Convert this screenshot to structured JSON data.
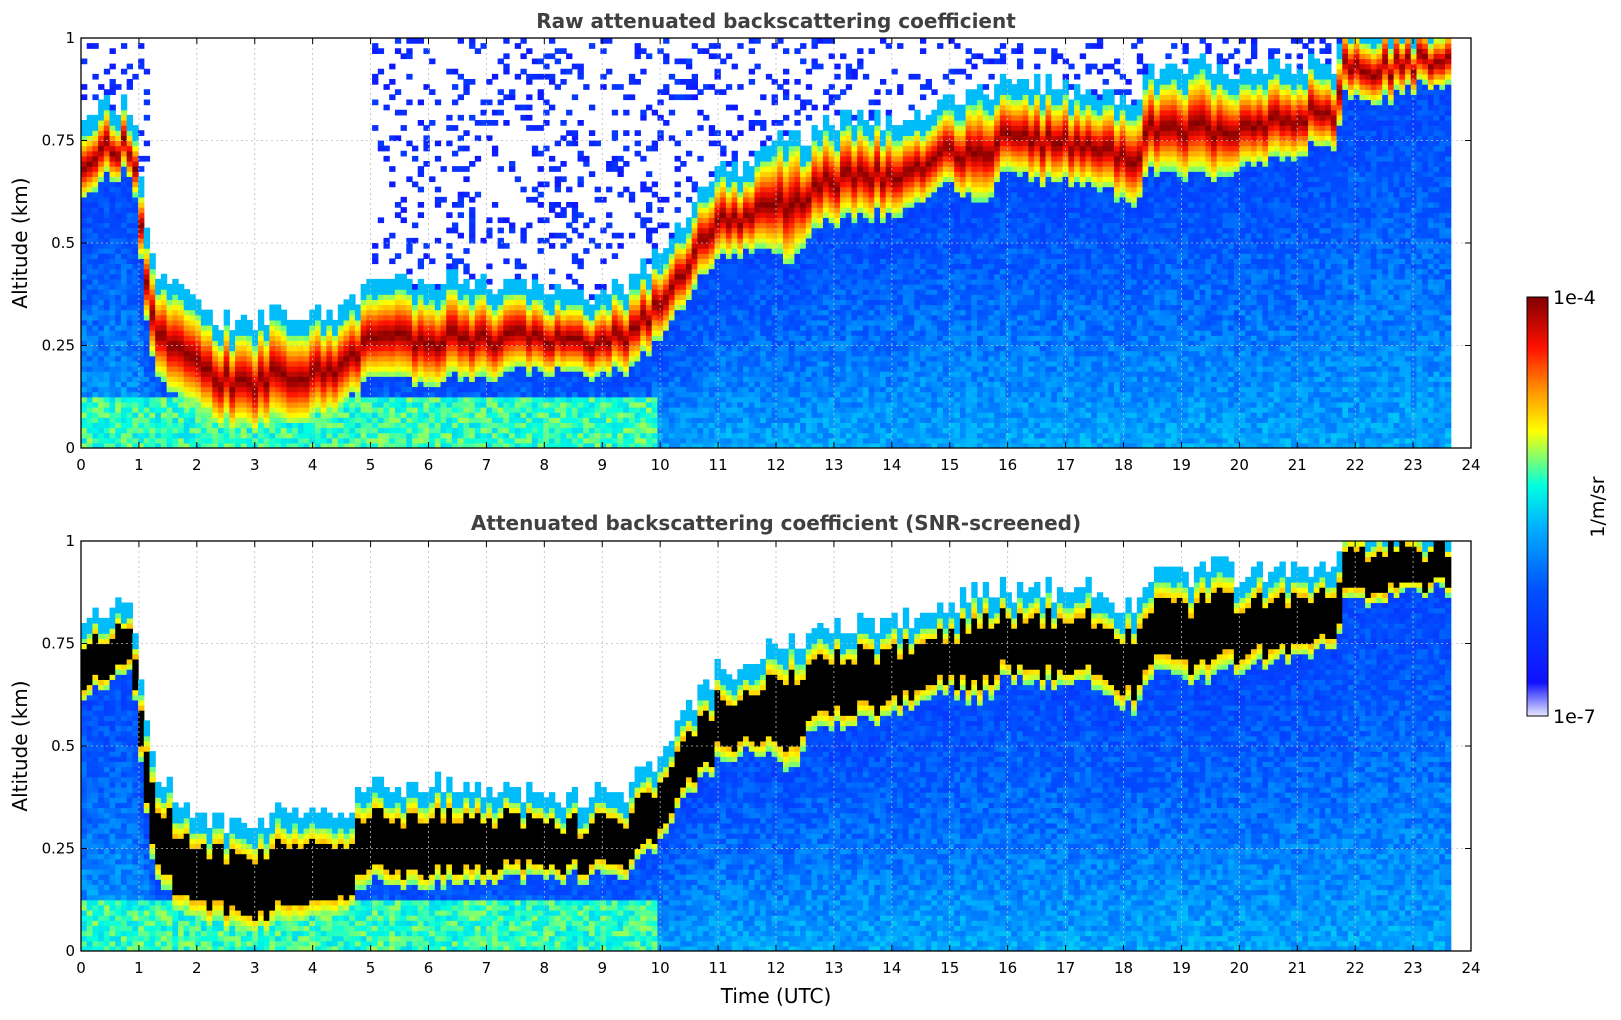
{
  "chart_data": [
    {
      "type": "heatmap",
      "title": "Raw attenuated backscattering coefficient",
      "xlabel": "",
      "ylabel": "Altitude (km)",
      "xlim": [
        0,
        24
      ],
      "ylim": [
        0,
        1
      ],
      "xticks": [
        "0",
        "1",
        "2",
        "3",
        "4",
        "5",
        "6",
        "7",
        "8",
        "9",
        "10",
        "11",
        "12",
        "13",
        "14",
        "15",
        "16",
        "17",
        "18",
        "19",
        "20",
        "21",
        "22",
        "23",
        "24"
      ],
      "yticks": [
        "0",
        "0.25",
        "0.5",
        "0.75",
        "1"
      ],
      "grid": true,
      "data_end_hour": 23.65,
      "layer_profile": {
        "time_utc": [
          0,
          0.5,
          0.9,
          1.2,
          1.6,
          2.0,
          2.5,
          3.0,
          3.5,
          4.0,
          4.5,
          5.0,
          5.5,
          6.0,
          6.5,
          7.0,
          7.5,
          8.0,
          8.5,
          9.0,
          9.5,
          10.0,
          10.5,
          11.0,
          11.5,
          12.0,
          12.3,
          12.5,
          13.0,
          13.5,
          14.0,
          14.5,
          15.0,
          15.5,
          16.0,
          16.5,
          17.0,
          17.5,
          18.0,
          18.2,
          18.5,
          19.0,
          19.5,
          20.0,
          20.5,
          21.0,
          21.5,
          21.7,
          21.8,
          22.5,
          23.0,
          23.6
        ],
        "layer_top_km": [
          0.78,
          0.8,
          0.8,
          0.42,
          0.35,
          0.3,
          0.27,
          0.27,
          0.3,
          0.3,
          0.3,
          0.36,
          0.36,
          0.37,
          0.37,
          0.36,
          0.35,
          0.34,
          0.33,
          0.34,
          0.36,
          0.44,
          0.55,
          0.64,
          0.64,
          0.72,
          0.72,
          0.72,
          0.75,
          0.76,
          0.76,
          0.77,
          0.8,
          0.84,
          0.84,
          0.85,
          0.84,
          0.84,
          0.8,
          0.8,
          0.88,
          0.87,
          0.9,
          0.88,
          0.89,
          0.9,
          0.9,
          0.9,
          1.0,
          1.0,
          1.0,
          1.0
        ],
        "layer_bottom_km": [
          0.62,
          0.66,
          0.68,
          0.22,
          0.12,
          0.09,
          0.06,
          0.05,
          0.07,
          0.08,
          0.1,
          0.17,
          0.16,
          0.16,
          0.17,
          0.17,
          0.18,
          0.18,
          0.18,
          0.18,
          0.19,
          0.27,
          0.38,
          0.46,
          0.48,
          0.48,
          0.44,
          0.52,
          0.55,
          0.56,
          0.57,
          0.6,
          0.64,
          0.6,
          0.67,
          0.65,
          0.65,
          0.65,
          0.6,
          0.59,
          0.68,
          0.66,
          0.66,
          0.69,
          0.7,
          0.72,
          0.74,
          0.74,
          0.86,
          0.85,
          0.88,
          0.88
        ],
        "peak_log10": [
          -4.0,
          -4.0,
          -4.0,
          -4.0,
          -4.0,
          -4.0,
          -4.0,
          -4.0,
          -4.0,
          -4.0,
          -4.0,
          -4.0,
          -4.0,
          -4.0,
          -4.0,
          -4.0,
          -4.0,
          -4.0,
          -4.0,
          -4.0,
          -4.0,
          -4.0,
          -4.0,
          -4.0,
          -4.0,
          -4.0,
          -4.0,
          -4.0,
          -4.0,
          -4.0,
          -4.0,
          -4.0,
          -4.0,
          -4.0,
          -4.0,
          -4.0,
          -4.0,
          -4.0,
          -4.0,
          -4.0,
          -4.0,
          -4.0,
          -4.0,
          -4.0,
          -4.0,
          -4.0,
          -4.0,
          -4.0,
          -4.0,
          -4.0,
          -4.0,
          -4.0
        ]
      }
    },
    {
      "type": "heatmap",
      "title": "Attenuated backscattering coefficient (SNR-screened)",
      "xlabel": "Time (UTC)",
      "ylabel": "Altitude (km)",
      "xlim": [
        0,
        24
      ],
      "ylim": [
        0,
        1
      ],
      "xticks": [
        "0",
        "1",
        "2",
        "3",
        "4",
        "5",
        "6",
        "7",
        "8",
        "9",
        "10",
        "11",
        "12",
        "13",
        "14",
        "15",
        "16",
        "17",
        "18",
        "19",
        "20",
        "21",
        "22",
        "23",
        "24"
      ],
      "yticks": [
        "0",
        "0.25",
        "0.5",
        "0.75",
        "1"
      ],
      "grid": true,
      "saturated_color": "#000000",
      "data_end_hour": 23.65
    }
  ],
  "colorbar": {
    "label": "1/m/sr",
    "max_label": "1e-4",
    "min_label": "1e-7",
    "log10_range": [
      -7,
      -4
    ]
  },
  "colors": {
    "colormap": [
      "#e8e8ff",
      "#0000ff",
      "#00a0ff",
      "#00ffff",
      "#ffff00",
      "#ff7f00",
      "#ff0000",
      "#800000"
    ],
    "grid": "#bdbdbd",
    "title": "#404040"
  }
}
